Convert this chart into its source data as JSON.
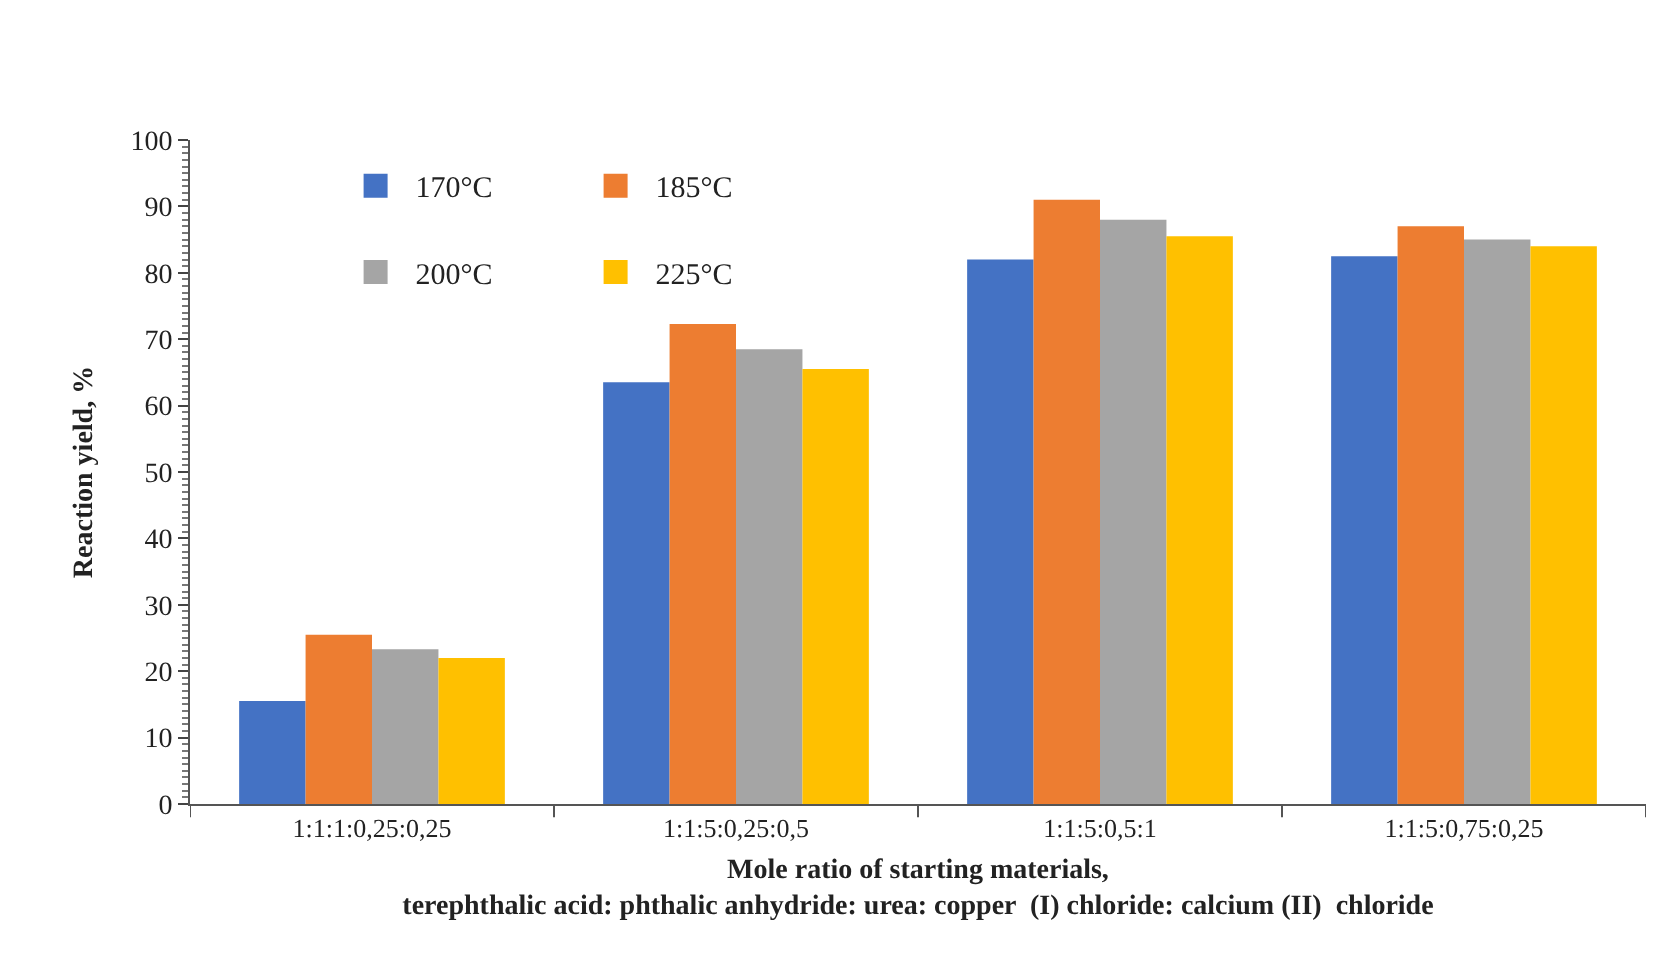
{
  "chart_data": {
    "type": "bar",
    "xlabel": "Mole ratio of starting materials,\nterephthalic acid: phthalic anhydride: urea: copper  (I) chloride: calcium (II)  chloride",
    "ylabel": "Reaction yield, %",
    "categories": [
      "1:1:1:0,25:0,25",
      "1:1:5:0,25:0,5",
      "1:1:5:0,5:1",
      "1:1:5:0,75:0,25"
    ],
    "series": [
      {
        "name": "170°C",
        "color": "#4472c4",
        "values": [
          15.5,
          63.5,
          82,
          82.5
        ]
      },
      {
        "name": "185°C",
        "color": "#ed7d31",
        "values": [
          25.5,
          72.3,
          91,
          87
        ]
      },
      {
        "name": "200°C",
        "color": "#a5a5a5",
        "values": [
          23.3,
          68.5,
          88,
          85
        ]
      },
      {
        "name": "225°C",
        "color": "#ffc000",
        "values": [
          22,
          65.5,
          85.5,
          84
        ]
      }
    ],
    "ylim": [
      0,
      100
    ],
    "yticks": [
      0,
      10,
      20,
      30,
      40,
      50,
      60,
      70,
      80,
      90,
      100
    ],
    "legend": "top left"
  }
}
